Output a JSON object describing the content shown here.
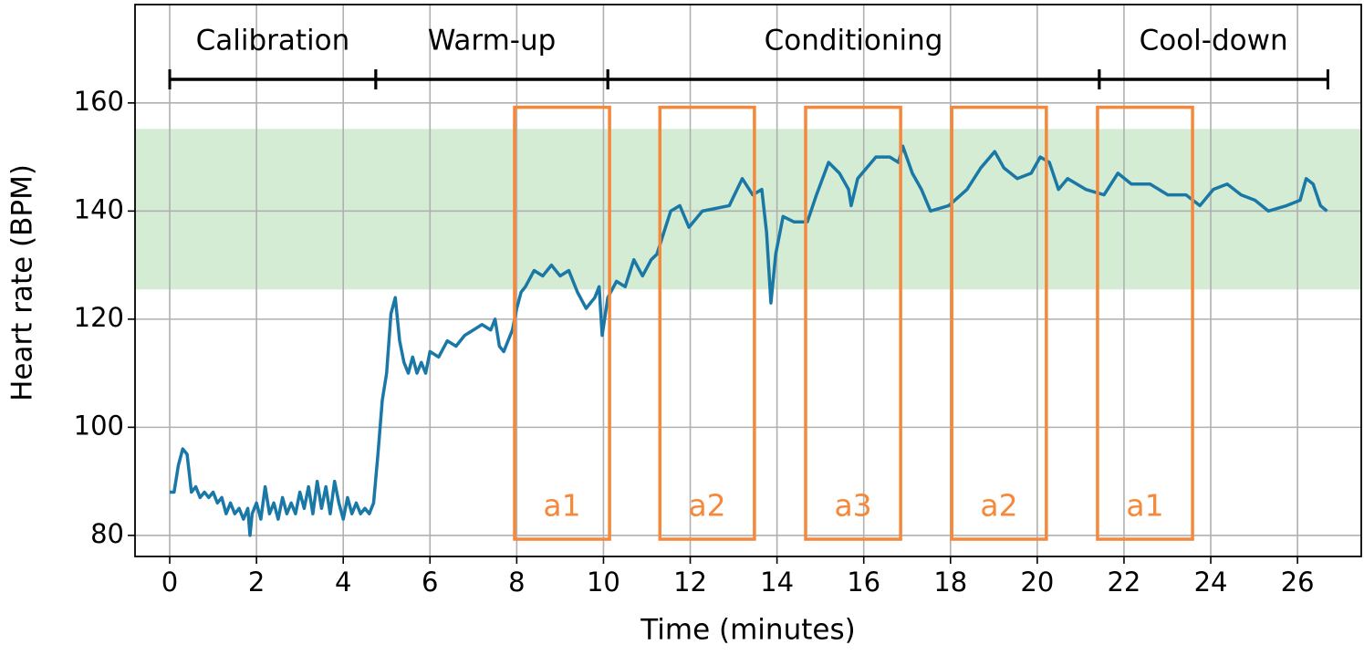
{
  "chart_data": {
    "type": "line",
    "xlabel": "Time (minutes)",
    "ylabel": "Heart rate (BPM)",
    "xlim": [
      -0.8,
      27.47
    ],
    "ylim": [
      76.1,
      178.2
    ],
    "xticks": [
      0,
      2,
      4,
      6,
      8,
      10,
      12,
      14,
      16,
      18,
      20,
      22,
      24,
      26
    ],
    "yticks": [
      80,
      100,
      120,
      140,
      160
    ],
    "grid": true,
    "target_band": {
      "range": [
        125.5,
        155.2
      ],
      "color": "#d3ecd3"
    },
    "phases": [
      {
        "label": "Calibration",
        "start": 0,
        "end": 4.75
      },
      {
        "label": "Warm-up",
        "start": 4.75,
        "end": 10.1
      },
      {
        "label": "Conditioning",
        "start": 10.1,
        "end": 21.43
      },
      {
        "label": "Cool-down",
        "start": 21.43,
        "end": 26.7
      }
    ],
    "annotation_color": "#f5883a",
    "annotations": [
      {
        "label": "a1",
        "x": [
          7.95,
          10.14
        ],
        "y": [
          79.3,
          159.2
        ]
      },
      {
        "label": "a2",
        "x": [
          11.3,
          13.48
        ],
        "y": [
          79.3,
          159.2
        ]
      },
      {
        "label": "a3",
        "x": [
          14.66,
          16.85
        ],
        "y": [
          79.3,
          159.2
        ]
      },
      {
        "label": "a2",
        "x": [
          18.03,
          20.21
        ],
        "y": [
          79.3,
          159.2
        ]
      },
      {
        "label": "a1",
        "x": [
          21.39,
          23.58
        ],
        "y": [
          79.3,
          159.2
        ]
      }
    ],
    "x": [
      0,
      0.1,
      0.2,
      0.3,
      0.4,
      0.5,
      0.6,
      0.7,
      0.8,
      0.9,
      1.0,
      1.1,
      1.2,
      1.3,
      1.4,
      1.5,
      1.6,
      1.7,
      1.8,
      1.85,
      1.9,
      2.0,
      2.1,
      2.2,
      2.3,
      2.4,
      2.5,
      2.6,
      2.7,
      2.8,
      2.9,
      3.0,
      3.1,
      3.2,
      3.3,
      3.4,
      3.5,
      3.6,
      3.7,
      3.8,
      3.9,
      4.0,
      4.1,
      4.2,
      4.3,
      4.4,
      4.5,
      4.6,
      4.7,
      4.8,
      4.9,
      5.0,
      5.1,
      5.2,
      5.3,
      5.4,
      5.5,
      5.6,
      5.7,
      5.8,
      5.9,
      6.0,
      6.2,
      6.4,
      6.6,
      6.8,
      7.0,
      7.2,
      7.4,
      7.5,
      7.6,
      7.7,
      7.8,
      7.9,
      8.0,
      8.1,
      8.2,
      8.4,
      8.6,
      8.8,
      9.0,
      9.2,
      9.4,
      9.6,
      9.8,
      9.9,
      9.97,
      10.1,
      10.3,
      10.5,
      10.7,
      10.9,
      11.1,
      11.23,
      11.55,
      11.76,
      11.97,
      12.28,
      12.9,
      13.2,
      13.44,
      13.65,
      13.76,
      13.86,
      13.97,
      14.14,
      14.39,
      14.7,
      14.91,
      15.19,
      15.44,
      15.65,
      15.71,
      15.86,
      16.28,
      16.6,
      16.8,
      16.9,
      17.12,
      17.33,
      17.54,
      17.96,
      18.38,
      18.7,
      19.02,
      19.23,
      19.54,
      19.86,
      20.07,
      20.28,
      20.49,
      20.7,
      21.12,
      21.54,
      21.86,
      22.17,
      22.6,
      23.01,
      23.43,
      23.75,
      24.06,
      24.38,
      24.7,
      25.02,
      25.33,
      25.75,
      26.06,
      26.2,
      26.36,
      26.53,
      26.68
    ],
    "series": [
      {
        "color": "#1a78a6",
        "values": [
          88,
          88,
          93,
          96,
          95,
          88,
          89,
          87,
          88,
          87,
          88,
          86,
          87,
          84,
          86,
          84,
          85,
          83,
          85,
          80,
          84,
          86,
          83,
          89,
          84,
          86,
          83,
          87,
          84,
          86,
          84,
          88,
          85,
          89,
          84,
          90,
          85,
          89,
          84,
          90,
          86,
          83,
          87,
          84,
          86,
          84,
          85,
          84,
          86,
          95,
          105,
          110,
          121,
          124,
          116,
          112,
          110,
          113,
          110,
          112,
          110,
          114,
          113,
          116,
          115,
          117,
          118,
          119,
          118,
          120,
          115,
          114,
          116,
          118,
          122,
          125,
          126,
          129,
          128,
          130,
          128,
          129,
          125,
          122,
          124,
          126,
          117,
          124,
          127,
          126,
          131,
          128,
          131,
          132,
          140,
          141,
          137,
          140,
          141,
          146,
          143,
          144,
          136,
          123,
          132,
          139,
          138,
          138,
          143,
          149,
          147,
          144,
          141,
          146,
          150,
          150,
          149,
          152,
          147,
          144,
          140,
          141,
          144,
          148,
          151,
          148,
          146,
          147,
          150,
          149,
          144,
          146,
          144,
          143,
          147,
          145,
          145,
          143,
          143,
          141,
          144,
          145,
          143,
          142,
          140,
          141,
          142,
          146,
          145,
          141,
          140
        ]
      }
    ]
  }
}
